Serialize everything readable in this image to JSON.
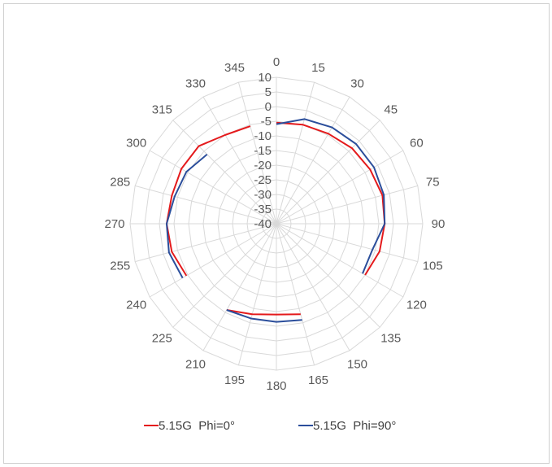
{
  "chart_data": {
    "type": "radar",
    "title": "",
    "categories": [
      "0",
      "15",
      "30",
      "45",
      "60",
      "75",
      "90",
      "105",
      "120",
      "135",
      "150",
      "165",
      "180",
      "195",
      "210",
      "225",
      "240",
      "255",
      "270",
      "285",
      "300",
      "315",
      "330",
      "345"
    ],
    "radial_ticks": [
      "10",
      "5",
      "0",
      "-5",
      "-10",
      "-15",
      "-20",
      "-25",
      "-30",
      "-35",
      "-40"
    ],
    "rlim": [
      -40,
      10
    ],
    "grid": true,
    "legend_position": "bottom",
    "series": [
      {
        "name": "5.15G  Phi=0°",
        "color": "#e41a1c",
        "values": [
          -5.5,
          -5,
          -4.5,
          -3.5,
          -3,
          -2.5,
          -3,
          -3.5,
          -5,
          null,
          null,
          -8,
          -9,
          -8,
          -6,
          null,
          -4.5,
          -3,
          -2.5,
          -3,
          -2.5,
          -2.5,
          -5,
          -5.5
        ]
      },
      {
        "name": "5.15G  Phi=90°",
        "color": "#2b4e9b",
        "values": [
          -6,
          -3,
          -2,
          -1.5,
          -1.5,
          -2,
          -3,
          -6,
          -6,
          null,
          null,
          -6,
          -6.5,
          -6.5,
          -6,
          null,
          -3,
          -2,
          -2.5,
          -4,
          -4.5,
          -6.5,
          null,
          null
        ]
      }
    ]
  }
}
